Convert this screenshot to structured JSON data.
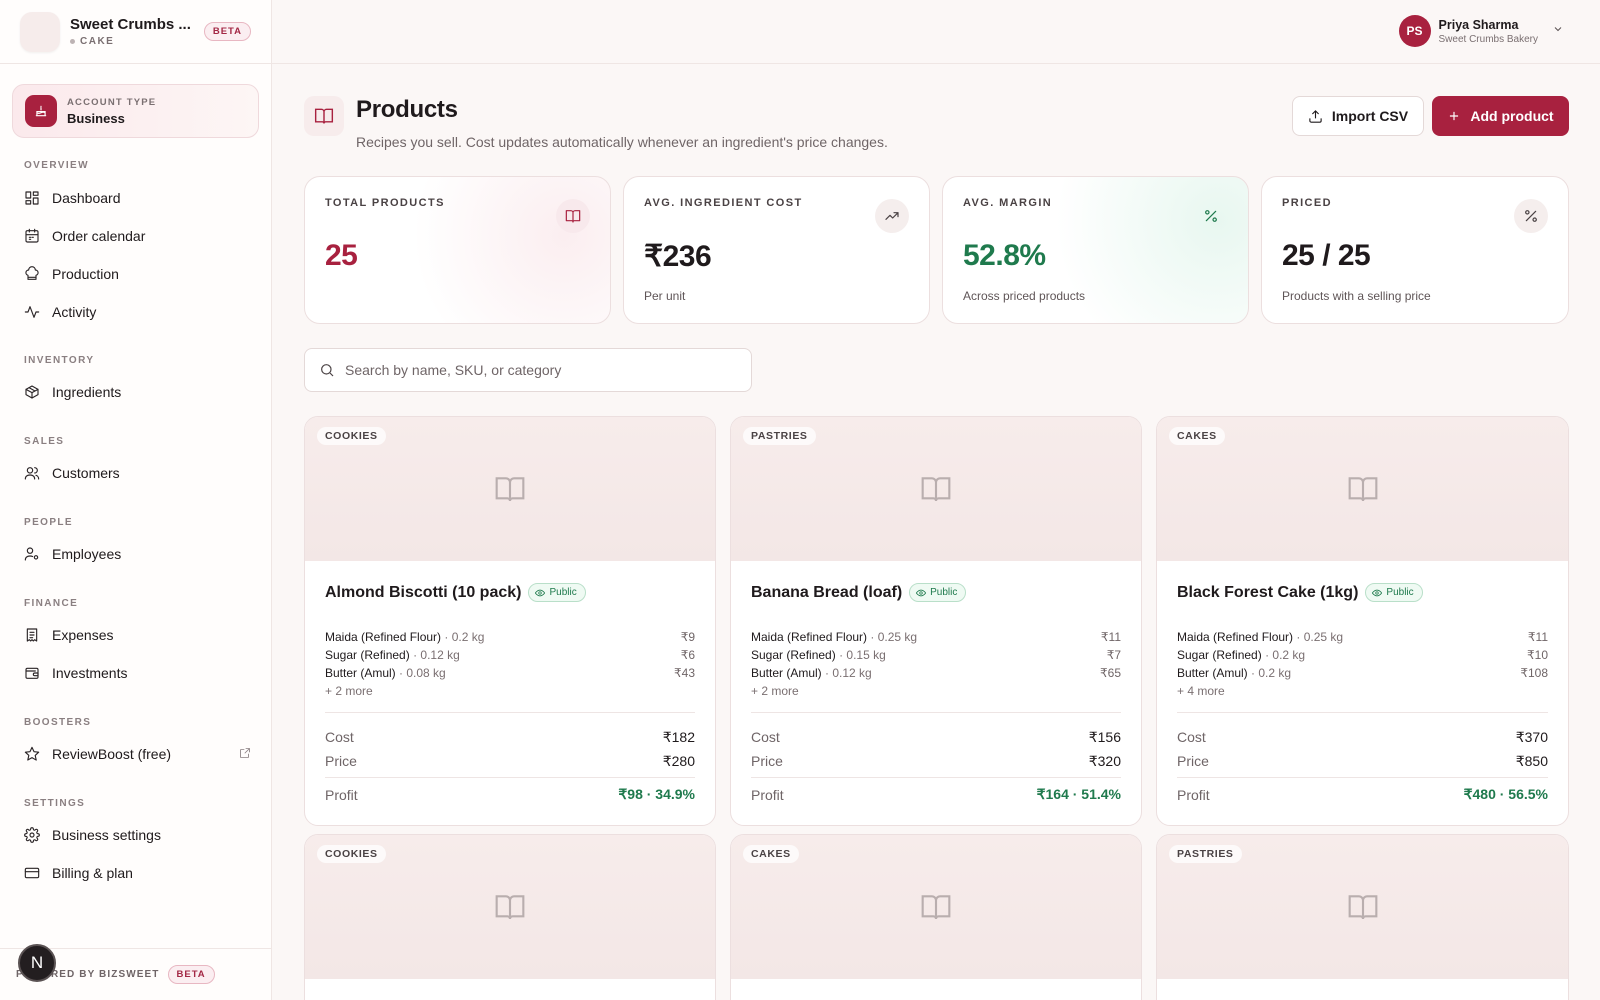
{
  "brand": {
    "name": "Sweet Crumbs ...",
    "sub": "CAKE",
    "badge": "BETA"
  },
  "account": {
    "label": "ACCOUNT TYPE",
    "value": "Business"
  },
  "nav": {
    "overview": {
      "title": "OVERVIEW",
      "items": [
        "Dashboard",
        "Order calendar",
        "Production",
        "Activity"
      ]
    },
    "inventory": {
      "title": "INVENTORY",
      "items": [
        "Ingredients"
      ]
    },
    "sales": {
      "title": "SALES",
      "items": [
        "Customers"
      ]
    },
    "people": {
      "title": "PEOPLE",
      "items": [
        "Employees"
      ]
    },
    "finance": {
      "title": "FINANCE",
      "items": [
        "Expenses",
        "Investments"
      ]
    },
    "boosters": {
      "title": "BOOSTERS",
      "items": [
        "ReviewBoost (free)"
      ]
    },
    "settings": {
      "title": "SETTINGS",
      "items": [
        "Business settings",
        "Billing & plan"
      ]
    }
  },
  "footer": {
    "powered": "POWERED BY BIZSWEET",
    "badge": "BETA",
    "n_badge": "N"
  },
  "user": {
    "initials": "PS",
    "name": "Priya Sharma",
    "org": "Sweet Crumbs Bakery"
  },
  "header": {
    "title": "Products",
    "subtitle": "Recipes you sell. Cost updates automatically whenever an ingredient's price changes.",
    "import_label": "Import CSV",
    "add_label": "Add product"
  },
  "stats": [
    {
      "label": "TOTAL PRODUCTS",
      "value": "25",
      "note": "",
      "color": "#a8213f",
      "icon": "book-icon"
    },
    {
      "label": "AVG. INGREDIENT COST",
      "value": "₹236",
      "note": "Per unit",
      "color": "#1f1a1c",
      "icon": "trending-up-icon"
    },
    {
      "label": "AVG. MARGIN",
      "value": "52.8%",
      "note": "Across priced products",
      "color": "#1f7a4d",
      "icon": "percent-icon"
    },
    {
      "label": "PRICED",
      "value": "25 / 25",
      "note": "Products with a selling price",
      "color": "#1f1a1c",
      "icon": "percent-icon"
    }
  ],
  "search": {
    "placeholder": "Search by name, SKU, or category"
  },
  "products": [
    {
      "category": "COOKIES",
      "name": "Almond Biscotti (10 pack)",
      "badge": "Public",
      "ingredients": [
        {
          "name": "Maida (Refined Flour)",
          "qty": "· 0.2 kg",
          "price": "₹9"
        },
        {
          "name": "Sugar (Refined)",
          "qty": "· 0.12 kg",
          "price": "₹6"
        },
        {
          "name": "Butter (Amul)",
          "qty": "· 0.08 kg",
          "price": "₹43"
        }
      ],
      "more": "+ 2 more",
      "cost_label": "Cost",
      "cost": "₹182",
      "price_label": "Price",
      "price": "₹280",
      "profit_label": "Profit",
      "profit": "₹98 · 34.9%"
    },
    {
      "category": "PASTRIES",
      "name": "Banana Bread (loaf)",
      "badge": "Public",
      "ingredients": [
        {
          "name": "Maida (Refined Flour)",
          "qty": "· 0.25 kg",
          "price": "₹11"
        },
        {
          "name": "Sugar (Refined)",
          "qty": "· 0.15 kg",
          "price": "₹7"
        },
        {
          "name": "Butter (Amul)",
          "qty": "· 0.12 kg",
          "price": "₹65"
        }
      ],
      "more": "+ 2 more",
      "cost_label": "Cost",
      "cost": "₹156",
      "price_label": "Price",
      "price": "₹320",
      "profit_label": "Profit",
      "profit": "₹164 · 51.4%"
    },
    {
      "category": "CAKES",
      "name": "Black Forest Cake (1kg)",
      "badge": "Public",
      "ingredients": [
        {
          "name": "Maida (Refined Flour)",
          "qty": "· 0.25 kg",
          "price": "₹11"
        },
        {
          "name": "Sugar (Refined)",
          "qty": "· 0.2 kg",
          "price": "₹10"
        },
        {
          "name": "Butter (Amul)",
          "qty": "· 0.2 kg",
          "price": "₹108"
        }
      ],
      "more": "+ 4 more",
      "cost_label": "Cost",
      "cost": "₹370",
      "price_label": "Price",
      "price": "₹850",
      "profit_label": "Profit",
      "profit": "₹480 · 56.5%"
    }
  ],
  "row2_categories": [
    "COOKIES",
    "CAKES",
    "PASTRIES"
  ]
}
